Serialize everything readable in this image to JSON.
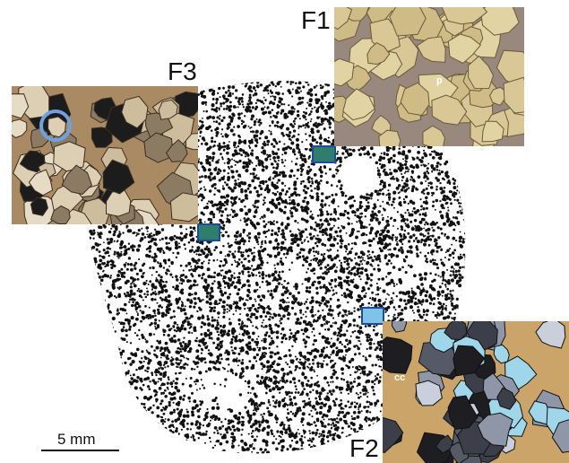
{
  "figure": {
    "panels": [
      {
        "id": "F1",
        "label": "F1",
        "inset_tag": "p",
        "fill_color": "#3a6fb8"
      },
      {
        "id": "F2",
        "label": "F2",
        "inset_tag": "cc",
        "fill_color": "#7ec3e8"
      },
      {
        "id": "F3",
        "label": "F3",
        "inset_tag": "",
        "fill_color": "#2e7fd0"
      }
    ],
    "scale_bar": {
      "label": "5 mm"
    },
    "colors": {
      "dots": "#111111",
      "marker_stroke": "#1a4da0",
      "pore_blue": "#5b86d6",
      "grain_tan": "#d9c896",
      "cement_brown": "#b9894f",
      "dark_grain": "#1d1d22"
    }
  }
}
